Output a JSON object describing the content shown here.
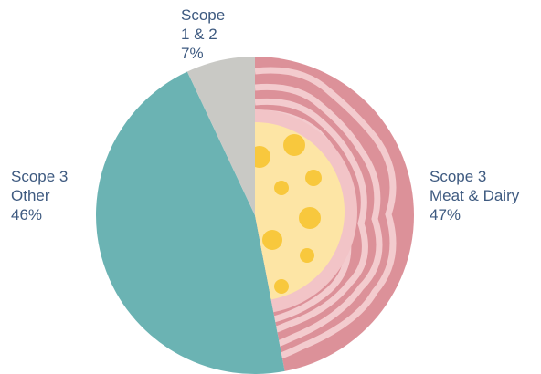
{
  "chart_data": {
    "type": "pie",
    "categories": [
      "Scope 3\nMeat & Dairy",
      "Scope 3\nOther",
      "Scope\n1 & 2"
    ],
    "values": [
      47,
      46,
      7
    ],
    "value_labels": [
      "47%",
      "46%",
      "7%"
    ],
    "colors": [
      "#dc9199",
      "#6bb3b3",
      "#c9c9c5"
    ]
  }
}
